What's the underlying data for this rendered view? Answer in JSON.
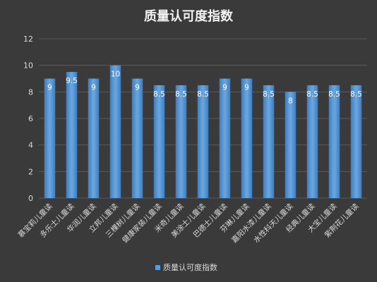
{
  "chart_data": {
    "type": "bar",
    "title": "质量认可度指数",
    "categories": [
      "慕宝莉儿童读",
      "多乐士儿童读",
      "华润儿童读",
      "立邦儿童读",
      "三棵树儿童读",
      "健康家装儿童读",
      "米奇儿童读",
      "美涂士儿童读",
      "巴德士儿童读",
      "芬琳儿童读",
      "嘉阳水漆儿童读",
      "水性科天儿童读",
      "经典儿童读",
      "大宝儿童读",
      "紫荆花儿童读"
    ],
    "series": [
      {
        "name": "质量认可度指数",
        "values": [
          9,
          9.5,
          9,
          10,
          9,
          8.5,
          8.5,
          8.5,
          9,
          9,
          8.5,
          8,
          8.5,
          8.5,
          8.5
        ],
        "labels": [
          "9",
          "9.5",
          "9",
          "10",
          "9",
          "8.5",
          "8.5",
          "8.5",
          "9",
          "9",
          "8.5",
          "8",
          "8.5",
          "8.5",
          "8.5"
        ]
      }
    ],
    "ylim": [
      0,
      12
    ],
    "yticks": [
      "0",
      "2",
      "4",
      "6",
      "8",
      "10",
      "12"
    ],
    "grid": true,
    "legend": "bottom",
    "colors": {
      "bar": "#5b9bd5",
      "bar_dark": "#3f7cbf",
      "grid": "#5a5a5a",
      "background": "#3a3a3a"
    }
  }
}
